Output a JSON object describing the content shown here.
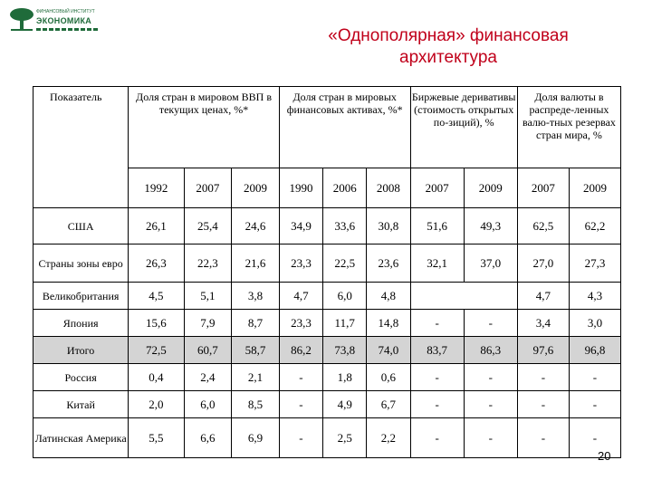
{
  "logo": {
    "line1": "ФИНАНСОВЫЙ ИНСТИТУТ",
    "line2": "ЭКОНОМИКА"
  },
  "title": {
    "line1": "«Однополярная» финансовая",
    "line2": "архитектура"
  },
  "headers": {
    "indicator": "Показатель",
    "groups": [
      {
        "label": "Доля стран в мировом ВВП в текущих ценах, %*",
        "years": [
          "1992",
          "2007",
          "2009"
        ]
      },
      {
        "label": "Доля стран в мировых финансовых активах, %*",
        "years": [
          "1990",
          "2006",
          "2008"
        ]
      },
      {
        "label": "Биржевые деривативы (стоимость открытых по-зиций), %",
        "years": [
          "2007",
          "2009"
        ]
      },
      {
        "label": "Доля валюты в распреде-ленных валю-тных резервах стран мира, %",
        "years": [
          "2007",
          "2009"
        ]
      }
    ]
  },
  "rows": [
    {
      "label": "США",
      "values": [
        "26,1",
        "25,4",
        "24,6",
        "34,9",
        "33,6",
        "30,8",
        "51,6",
        "49,3",
        "62,5",
        "62,2"
      ]
    },
    {
      "label": "Страны зоны евро",
      "values": [
        "26,3",
        "22,3",
        "21,6",
        "23,3",
        "22,5",
        "23,6",
        "32,1",
        "37,0",
        "27,0",
        "27,3"
      ]
    },
    {
      "label": "Великобритания",
      "values": [
        "4,5",
        "5,1",
        "3,8",
        "4,7",
        "6,0",
        "4,8",
        "",
        "",
        "4,7",
        "4,3"
      ]
    },
    {
      "label": "Япония",
      "values": [
        "15,6",
        "7,9",
        "8,7",
        "23,3",
        "11,7",
        "14,8",
        "-",
        "-",
        "3,4",
        "3,0"
      ]
    },
    {
      "label": "Итого",
      "values": [
        "72,5",
        "60,7",
        "58,7",
        "86,2",
        "73,8",
        "74,0",
        "83,7",
        "86,3",
        "97,6",
        "96,8"
      ]
    },
    {
      "label": "Россия",
      "values": [
        "0,4",
        "2,4",
        "2,1",
        "-",
        "1,8",
        "0,6",
        "-",
        "-",
        "-",
        "-"
      ]
    },
    {
      "label": "Китай",
      "values": [
        "2,0",
        "6,0",
        "8,5",
        "-",
        "4,9",
        "6,7",
        "-",
        "-",
        "-",
        "-"
      ]
    },
    {
      "label": "Латинская Америка",
      "values": [
        "5,5",
        "6,6",
        "6,9",
        "-",
        "2,5",
        "2,2",
        "-",
        "-",
        "-",
        "-"
      ]
    }
  ],
  "page_number": "20",
  "colors": {
    "title": "#c0001a",
    "logo": "#1f6b3a",
    "highlight_row": "#d4d4d4"
  }
}
